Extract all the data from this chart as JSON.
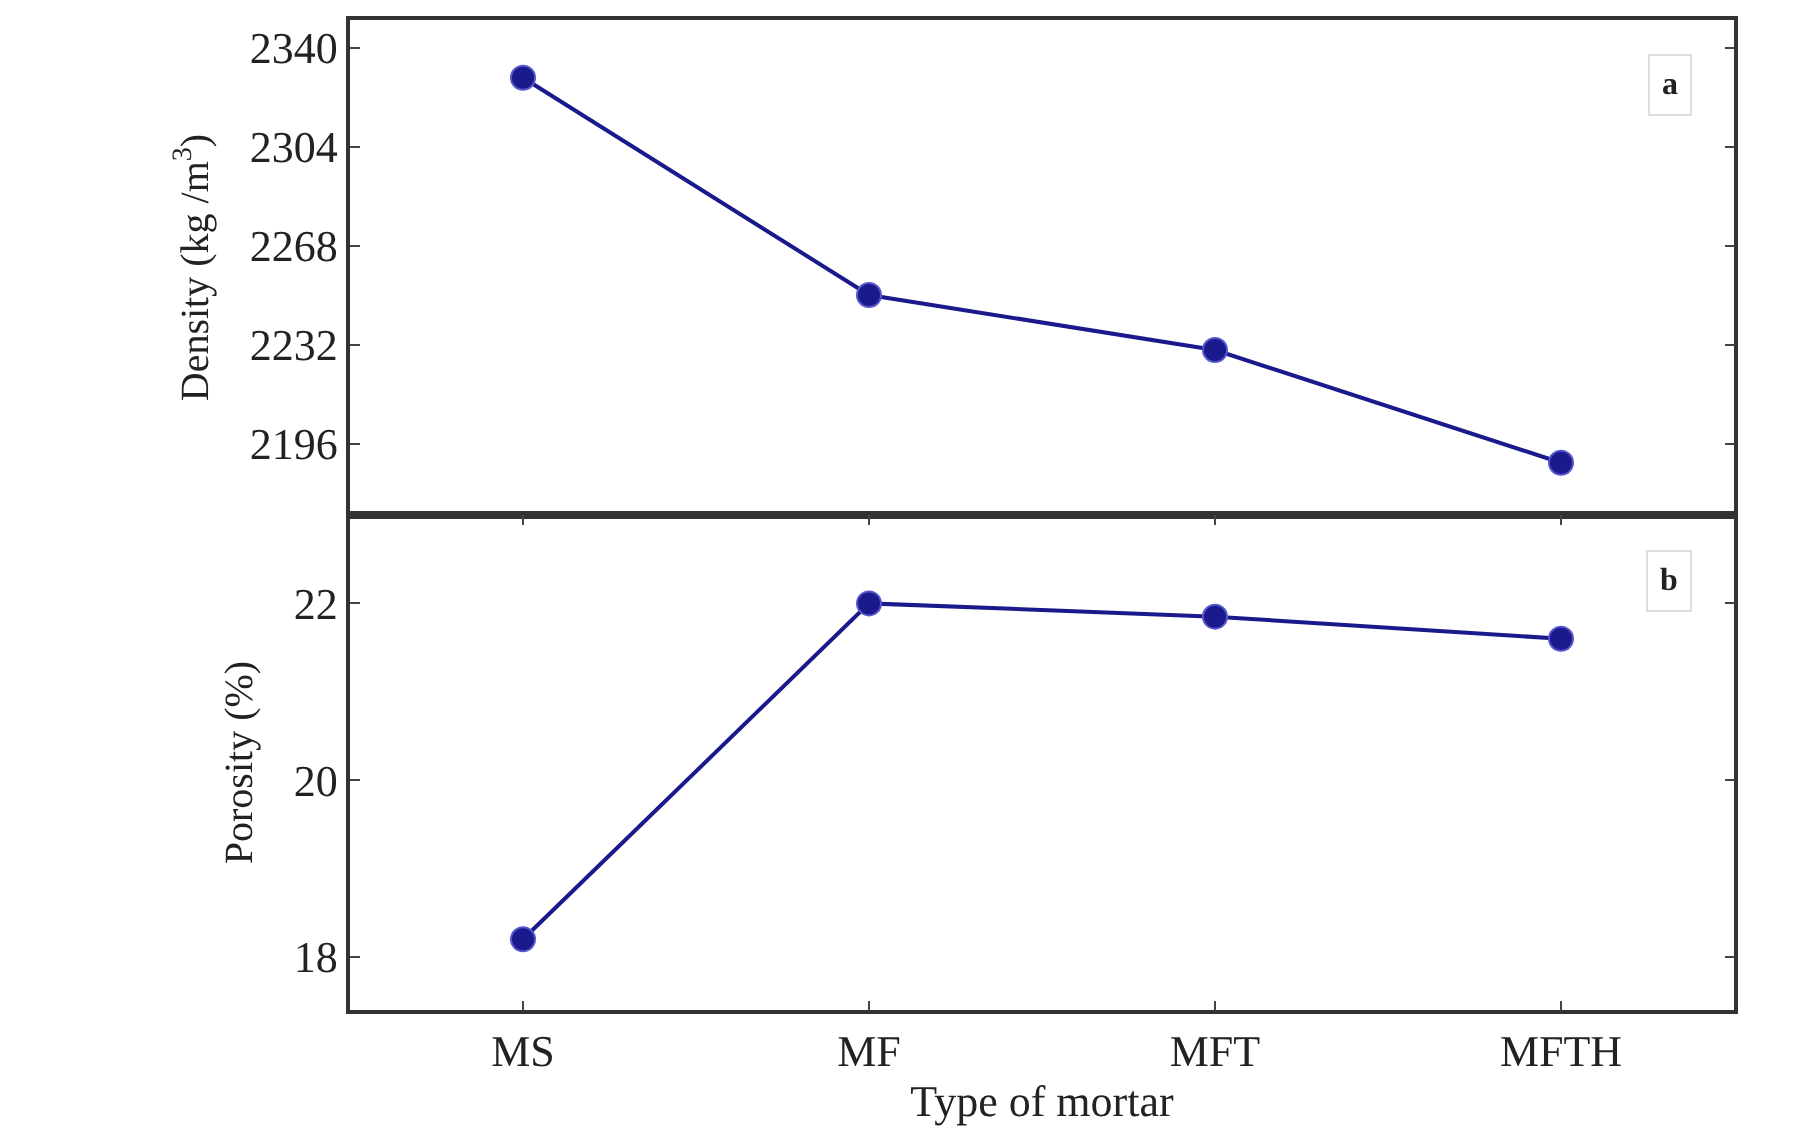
{
  "chart_data": [
    {
      "type": "line",
      "categories": [
        null,
        null,
        null,
        null
      ],
      "ylabel": "Density (kg /m$^{3}$)",
      "annotations": [
        "a"
      ],
      "tick_labels": "y",
      "marker": "circle",
      "line_style": "solid",
      "ylim": [
        2170,
        2350
      ],
      "yticks": [
        2196,
        2232,
        2268,
        2304,
        2340
      ],
      "series": [
        {
          "color": "#1a1a8c",
          "values": [
            2329,
            2250,
            2230,
            2189
          ]
        }
      ]
    },
    {
      "type": "line",
      "categories": [
        "MS",
        "MF",
        "MFT",
        "MFTH"
      ],
      "xlabel": "Type of mortar",
      "ylabel": "Porosity (%)",
      "annotations": [
        "b"
      ],
      "marker": "circle",
      "line_style": "solid",
      "ylim": [
        17.4,
        23.0
      ],
      "yticks": [
        18,
        20,
        22
      ],
      "series": [
        {
          "color": "#1a1a8c",
          "values": [
            18.2,
            22.0,
            21.85,
            21.6
          ]
        }
      ]
    }
  ]
}
